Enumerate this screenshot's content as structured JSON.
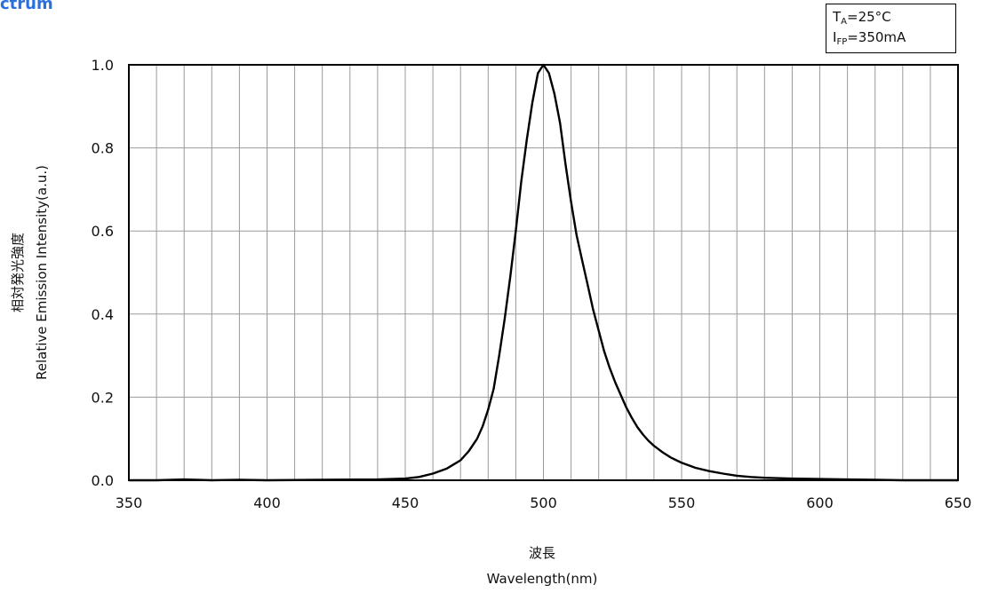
{
  "page": {
    "title": "ctrum"
  },
  "conditions": {
    "line1": {
      "symbol": "T",
      "subscript": "A",
      "value": "=25°C"
    },
    "line2": {
      "symbol": "I",
      "subscript": "FP",
      "value": "=350mA"
    }
  },
  "chart_data": {
    "type": "line",
    "xlabel_jp": "波長",
    "xlabel": "Wavelength(nm)",
    "ylabel_jp": "相対発光強度",
    "ylabel": "Relative Emission Intensity(a.u.)",
    "xlim": [
      350,
      650
    ],
    "ylim": [
      0,
      1.0
    ],
    "xticks": [
      350,
      400,
      450,
      500,
      550,
      600,
      650
    ],
    "xtick_labels": [
      "350",
      "400",
      "450",
      "500",
      "550",
      "600",
      "650"
    ],
    "yticks": [
      0,
      0.2,
      0.4,
      0.6,
      0.8,
      1.0
    ],
    "ytick_labels": [
      "0.0",
      "0.2",
      "0.4",
      "0.6",
      "0.8",
      "1.0"
    ],
    "grid": true,
    "line_color": "#000000",
    "series": [
      {
        "x": [
          350,
          360,
          370,
          380,
          390,
          400,
          420,
          440,
          450,
          455,
          460,
          465,
          470,
          473,
          476,
          478,
          480,
          482,
          484,
          486,
          488,
          490,
          492,
          494,
          496,
          498,
          500,
          502,
          504,
          506,
          508,
          510,
          512,
          514,
          516,
          518,
          520,
          522,
          524,
          526,
          528,
          530,
          532,
          534,
          536,
          538,
          540,
          543,
          546,
          550,
          555,
          560,
          565,
          570,
          575,
          580,
          590,
          600,
          610,
          620,
          630,
          640,
          650
        ],
        "y": [
          0.0,
          0.0,
          0.002,
          0.0,
          0.001,
          0.0,
          0.001,
          0.002,
          0.004,
          0.008,
          0.016,
          0.028,
          0.048,
          0.07,
          0.1,
          0.13,
          0.17,
          0.22,
          0.3,
          0.39,
          0.49,
          0.6,
          0.72,
          0.82,
          0.91,
          0.98,
          1.0,
          0.98,
          0.93,
          0.86,
          0.76,
          0.67,
          0.59,
          0.53,
          0.47,
          0.41,
          0.36,
          0.31,
          0.27,
          0.235,
          0.205,
          0.175,
          0.15,
          0.128,
          0.11,
          0.095,
          0.083,
          0.068,
          0.055,
          0.042,
          0.03,
          0.022,
          0.016,
          0.011,
          0.008,
          0.006,
          0.004,
          0.003,
          0.002,
          0.001,
          0.0,
          0.0,
          0.0
        ]
      }
    ]
  }
}
